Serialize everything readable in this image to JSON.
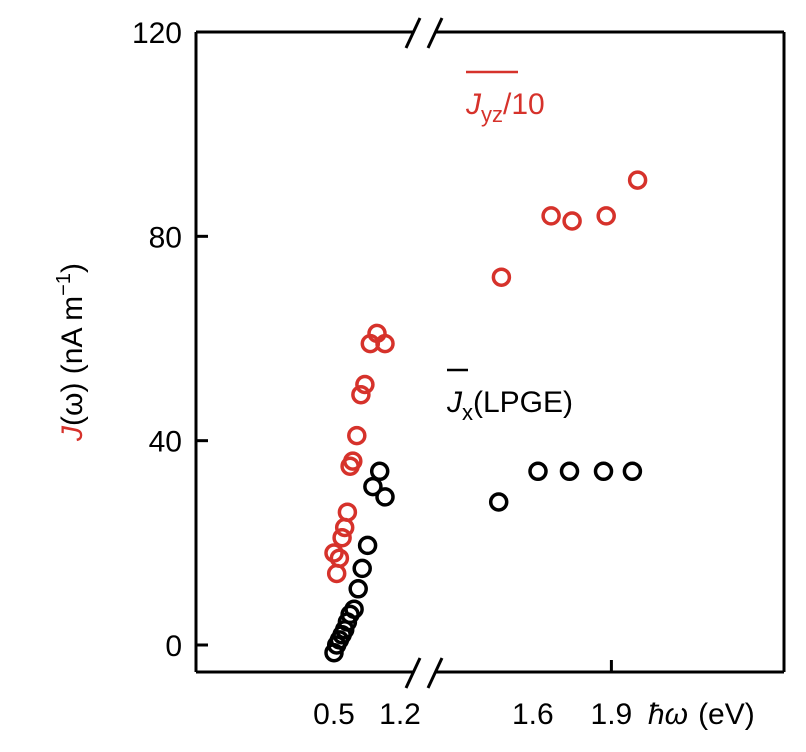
{
  "chart_data": {
    "type": "scatter",
    "title": "",
    "xlabel_symbol": "ħω",
    "xlabel_unit": "(eV)",
    "ylabel_J": "J",
    "ylabel_rest": "(ω) (nA m",
    "ylabel_sup": "−1",
    "ylabel_close": ")",
    "ylim": [
      0,
      120
    ],
    "x_segments": [
      {
        "xlim": [
          0.5,
          1.2
        ]
      },
      {
        "xlim": [
          1.2,
          2.2
        ]
      }
    ],
    "x_ticks": [
      "0.5",
      "1.2",
      "1.6",
      "1.9"
    ],
    "y_ticks": [
      "0",
      "40",
      "80",
      "120"
    ],
    "grid": false,
    "colors": {
      "red": "#d6322b",
      "black": "#000000"
    },
    "series": [
      {
        "name": "Jyz/10",
        "label_main": "J",
        "label_sub": "yz",
        "label_tail": "/10",
        "color": "#d6322b",
        "points": [
          [
            0.5,
            18
          ],
          [
            0.52,
            14
          ],
          [
            0.54,
            17
          ],
          [
            0.56,
            21
          ],
          [
            0.58,
            23
          ],
          [
            0.6,
            26
          ],
          [
            0.62,
            35
          ],
          [
            0.64,
            36
          ],
          [
            0.67,
            41
          ],
          [
            0.7,
            49
          ],
          [
            0.73,
            51
          ],
          [
            0.77,
            59
          ],
          [
            0.82,
            61
          ],
          [
            0.88,
            59
          ],
          [
            1.48,
            72
          ],
          [
            1.67,
            84
          ],
          [
            1.75,
            83
          ],
          [
            1.88,
            84
          ],
          [
            2.0,
            91
          ]
        ]
      },
      {
        "name": "Jx(LPGE)",
        "label_main": "J",
        "label_sub": "x",
        "label_tail": "(LPGE)",
        "color": "#000000",
        "points": [
          [
            0.5,
            -1.5
          ],
          [
            0.52,
            0
          ],
          [
            0.54,
            1
          ],
          [
            0.56,
            2
          ],
          [
            0.58,
            3
          ],
          [
            0.6,
            4.5
          ],
          [
            0.62,
            6
          ],
          [
            0.65,
            7
          ],
          [
            0.68,
            11
          ],
          [
            0.71,
            15
          ],
          [
            0.75,
            19.5
          ],
          [
            0.79,
            31
          ],
          [
            0.84,
            34
          ],
          [
            0.88,
            29
          ],
          [
            1.47,
            28
          ],
          [
            1.62,
            34
          ],
          [
            1.74,
            34
          ],
          [
            1.87,
            34
          ],
          [
            1.98,
            34
          ]
        ]
      }
    ]
  }
}
